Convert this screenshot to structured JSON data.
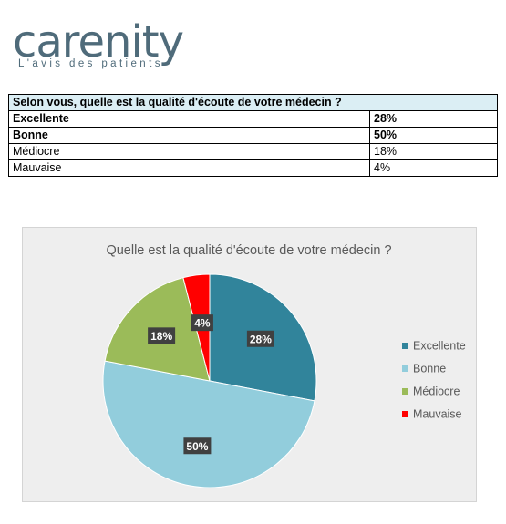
{
  "logo": {
    "word": "carenity",
    "tagline": "L'avis des patients",
    "color": "#4f6b7a",
    "accent": "#3fb8c9"
  },
  "table": {
    "question": "Selon vous, quelle est la qualité d'écoute de votre médecin ?",
    "rows": [
      {
        "label": "Excellente",
        "value": "28%",
        "bold": true
      },
      {
        "label": "Bonne",
        "value": "50%",
        "bold": true
      },
      {
        "label": "Médiocre",
        "value": "18%",
        "bold": false
      },
      {
        "label": "Mauvaise",
        "value": "4%",
        "bold": false
      }
    ]
  },
  "chart_data": {
    "type": "pie",
    "title": "Quelle est la qualité d'écoute de votre médecin ?",
    "categories": [
      "Excellente",
      "Bonne",
      "Médiocre",
      "Mauvaise"
    ],
    "values": [
      28,
      50,
      18,
      4
    ],
    "labels": [
      "28%",
      "50%",
      "18%",
      "4%"
    ],
    "colors": [
      "#31849b",
      "#92cddc",
      "#9bbb59",
      "#ff0000"
    ],
    "legend": "right",
    "background": "#eeeeee"
  }
}
